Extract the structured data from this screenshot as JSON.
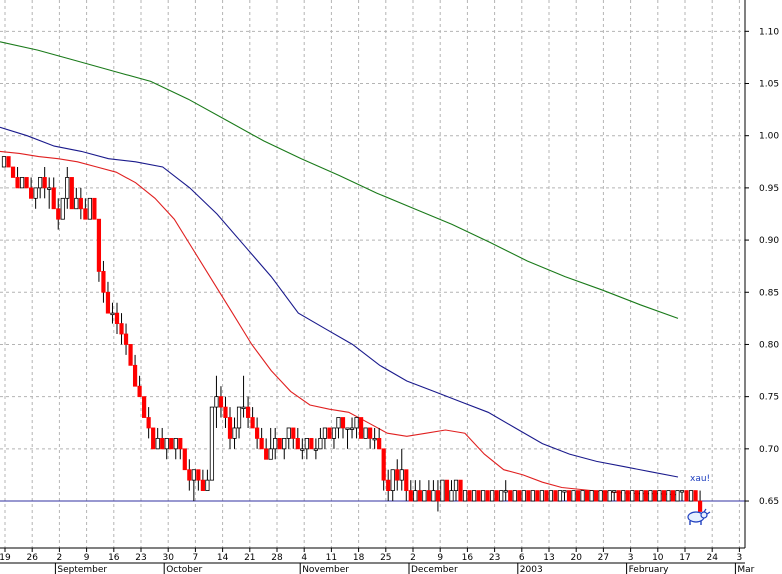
{
  "chart_data": {
    "type": "candlestick",
    "title": "",
    "xlabel": "",
    "ylabel": "",
    "ylim": [
      0.605,
      1.13
    ],
    "y_ticks": [
      "1.10",
      "1.05",
      "1.00",
      "0.95",
      "0.90",
      "0.85",
      "0.80",
      "0.75",
      "0.70",
      "0.65"
    ],
    "y_axis_side": "right",
    "grid": true,
    "x_day_labels": [
      "19",
      "26",
      "2",
      "9",
      "16",
      "23",
      "30",
      "7",
      "14",
      "21",
      "28",
      "4",
      "11",
      "18",
      "25",
      "2",
      "9",
      "16",
      "23",
      "6",
      "13",
      "20",
      "27",
      "3",
      "10",
      "17",
      "24",
      "3"
    ],
    "x_month_labels": [
      "September",
      "October",
      "November",
      "December",
      "2003",
      "February",
      "Mar"
    ],
    "reference_line": 0.65,
    "annotation": "xau!",
    "annotation_icon": "bull-icon",
    "colors": {
      "up": "#ffffff",
      "down": "#ff0000",
      "outline": "#000000",
      "ma_short": "#e02020",
      "ma_mid": "#1a1a8c",
      "ma_long": "#1a7a1a",
      "reference": "#3030a0",
      "grid": "#b4b4b4"
    },
    "series": [
      {
        "kind": "ohlc",
        "values": [
          [
            0.97,
            0.98,
            0.97,
            0.98
          ],
          [
            0.98,
            0.98,
            0.97,
            0.97
          ],
          [
            0.97,
            0.97,
            0.96,
            0.96
          ],
          [
            0.96,
            0.97,
            0.95,
            0.95
          ],
          [
            0.95,
            0.96,
            0.95,
            0.96
          ],
          [
            0.96,
            0.96,
            0.95,
            0.95
          ],
          [
            0.95,
            0.96,
            0.94,
            0.94
          ],
          [
            0.94,
            0.95,
            0.93,
            0.95
          ],
          [
            0.95,
            0.96,
            0.94,
            0.96
          ],
          [
            0.96,
            0.97,
            0.94,
            0.95
          ],
          [
            0.95,
            0.96,
            0.93,
            0.95
          ],
          [
            0.95,
            0.96,
            0.93,
            0.93
          ],
          [
            0.93,
            0.94,
            0.91,
            0.92
          ],
          [
            0.92,
            0.94,
            0.92,
            0.94
          ],
          [
            0.94,
            0.97,
            0.93,
            0.96
          ],
          [
            0.96,
            0.96,
            0.93,
            0.93
          ],
          [
            0.93,
            0.95,
            0.93,
            0.94
          ],
          [
            0.94,
            0.95,
            0.92,
            0.93
          ],
          [
            0.93,
            0.94,
            0.92,
            0.92
          ],
          [
            0.92,
            0.94,
            0.92,
            0.94
          ],
          [
            0.94,
            0.94,
            0.92,
            0.92
          ],
          [
            0.92,
            0.92,
            0.86,
            0.87
          ],
          [
            0.87,
            0.88,
            0.84,
            0.85
          ],
          [
            0.85,
            0.86,
            0.83,
            0.83
          ],
          [
            0.83,
            0.84,
            0.82,
            0.83
          ],
          [
            0.83,
            0.84,
            0.81,
            0.82
          ],
          [
            0.82,
            0.83,
            0.8,
            0.81
          ],
          [
            0.81,
            0.82,
            0.79,
            0.8
          ],
          [
            0.8,
            0.8,
            0.78,
            0.78
          ],
          [
            0.78,
            0.79,
            0.76,
            0.76
          ],
          [
            0.76,
            0.77,
            0.75,
            0.75
          ],
          [
            0.75,
            0.75,
            0.73,
            0.73
          ],
          [
            0.73,
            0.74,
            0.71,
            0.72
          ],
          [
            0.72,
            0.72,
            0.7,
            0.7
          ],
          [
            0.7,
            0.72,
            0.7,
            0.71
          ],
          [
            0.71,
            0.72,
            0.7,
            0.7
          ],
          [
            0.7,
            0.71,
            0.69,
            0.71
          ],
          [
            0.71,
            0.71,
            0.7,
            0.7
          ],
          [
            0.7,
            0.71,
            0.69,
            0.71
          ],
          [
            0.71,
            0.71,
            0.69,
            0.7
          ],
          [
            0.7,
            0.7,
            0.68,
            0.68
          ],
          [
            0.68,
            0.69,
            0.66,
            0.67
          ],
          [
            0.67,
            0.68,
            0.65,
            0.68
          ],
          [
            0.68,
            0.68,
            0.66,
            0.67
          ],
          [
            0.67,
            0.68,
            0.66,
            0.66
          ],
          [
            0.66,
            0.68,
            0.66,
            0.67
          ],
          [
            0.67,
            0.74,
            0.67,
            0.74
          ],
          [
            0.74,
            0.77,
            0.72,
            0.75
          ],
          [
            0.75,
            0.76,
            0.73,
            0.74
          ],
          [
            0.74,
            0.75,
            0.72,
            0.73
          ],
          [
            0.73,
            0.74,
            0.7,
            0.71
          ],
          [
            0.71,
            0.73,
            0.7,
            0.72
          ],
          [
            0.72,
            0.74,
            0.71,
            0.74
          ],
          [
            0.74,
            0.77,
            0.73,
            0.74
          ],
          [
            0.74,
            0.75,
            0.72,
            0.73
          ],
          [
            0.73,
            0.74,
            0.72,
            0.72
          ],
          [
            0.72,
            0.73,
            0.7,
            0.71
          ],
          [
            0.71,
            0.72,
            0.7,
            0.7
          ],
          [
            0.7,
            0.71,
            0.69,
            0.69
          ],
          [
            0.69,
            0.72,
            0.69,
            0.7
          ],
          [
            0.7,
            0.72,
            0.69,
            0.71
          ],
          [
            0.71,
            0.71,
            0.7,
            0.7
          ],
          [
            0.7,
            0.71,
            0.69,
            0.71
          ],
          [
            0.71,
            0.72,
            0.7,
            0.72
          ],
          [
            0.72,
            0.72,
            0.7,
            0.71
          ],
          [
            0.71,
            0.72,
            0.7,
            0.7
          ],
          [
            0.7,
            0.71,
            0.69,
            0.7
          ],
          [
            0.7,
            0.71,
            0.69,
            0.71
          ],
          [
            0.71,
            0.71,
            0.7,
            0.7
          ],
          [
            0.7,
            0.71,
            0.69,
            0.7
          ],
          [
            0.7,
            0.72,
            0.7,
            0.71
          ],
          [
            0.71,
            0.72,
            0.7,
            0.72
          ],
          [
            0.72,
            0.72,
            0.71,
            0.71
          ],
          [
            0.71,
            0.72,
            0.7,
            0.72
          ],
          [
            0.72,
            0.73,
            0.71,
            0.73
          ],
          [
            0.73,
            0.73,
            0.71,
            0.72
          ],
          [
            0.72,
            0.72,
            0.7,
            0.72
          ],
          [
            0.72,
            0.73,
            0.71,
            0.72
          ],
          [
            0.72,
            0.73,
            0.71,
            0.73
          ],
          [
            0.73,
            0.73,
            0.71,
            0.71
          ],
          [
            0.71,
            0.72,
            0.71,
            0.72
          ],
          [
            0.72,
            0.72,
            0.7,
            0.71
          ],
          [
            0.71,
            0.72,
            0.7,
            0.71
          ],
          [
            0.71,
            0.72,
            0.7,
            0.7
          ],
          [
            0.7,
            0.7,
            0.66,
            0.67
          ],
          [
            0.67,
            0.68,
            0.65,
            0.66
          ],
          [
            0.66,
            0.68,
            0.65,
            0.68
          ],
          [
            0.68,
            0.69,
            0.66,
            0.67
          ],
          [
            0.67,
            0.7,
            0.66,
            0.68
          ],
          [
            0.68,
            0.68,
            0.65,
            0.66
          ],
          [
            0.66,
            0.67,
            0.65,
            0.65
          ],
          [
            0.65,
            0.67,
            0.65,
            0.66
          ],
          [
            0.66,
            0.67,
            0.65,
            0.65
          ],
          [
            0.65,
            0.66,
            0.65,
            0.66
          ],
          [
            0.66,
            0.67,
            0.65,
            0.65
          ],
          [
            0.65,
            0.67,
            0.65,
            0.66
          ],
          [
            0.66,
            0.67,
            0.64,
            0.65
          ],
          [
            0.65,
            0.67,
            0.65,
            0.67
          ],
          [
            0.67,
            0.67,
            0.65,
            0.65
          ],
          [
            0.65,
            0.67,
            0.65,
            0.66
          ],
          [
            0.66,
            0.67,
            0.65,
            0.67
          ],
          [
            0.67,
            0.67,
            0.65,
            0.65
          ],
          [
            0.65,
            0.66,
            0.65,
            0.66
          ],
          [
            0.66,
            0.66,
            0.65,
            0.65
          ],
          [
            0.65,
            0.66,
            0.65,
            0.66
          ],
          [
            0.66,
            0.66,
            0.65,
            0.65
          ],
          [
            0.65,
            0.66,
            0.65,
            0.66
          ],
          [
            0.66,
            0.66,
            0.65,
            0.65
          ],
          [
            0.65,
            0.66,
            0.65,
            0.66
          ],
          [
            0.66,
            0.66,
            0.65,
            0.65
          ],
          [
            0.65,
            0.66,
            0.65,
            0.66
          ],
          [
            0.66,
            0.67,
            0.65,
            0.66
          ],
          [
            0.66,
            0.66,
            0.65,
            0.65
          ],
          [
            0.65,
            0.66,
            0.65,
            0.66
          ],
          [
            0.66,
            0.66,
            0.65,
            0.65
          ],
          [
            0.65,
            0.66,
            0.65,
            0.66
          ],
          [
            0.66,
            0.66,
            0.65,
            0.65
          ],
          [
            0.65,
            0.66,
            0.65,
            0.66
          ],
          [
            0.66,
            0.66,
            0.65,
            0.65
          ],
          [
            0.65,
            0.66,
            0.65,
            0.66
          ],
          [
            0.66,
            0.66,
            0.65,
            0.65
          ],
          [
            0.65,
            0.66,
            0.65,
            0.66
          ],
          [
            0.66,
            0.66,
            0.65,
            0.65
          ],
          [
            0.65,
            0.66,
            0.65,
            0.66
          ],
          [
            0.66,
            0.66,
            0.65,
            0.66
          ],
          [
            0.66,
            0.66,
            0.65,
            0.65
          ],
          [
            0.65,
            0.66,
            0.65,
            0.66
          ],
          [
            0.66,
            0.66,
            0.65,
            0.65
          ],
          [
            0.65,
            0.66,
            0.65,
            0.66
          ],
          [
            0.66,
            0.66,
            0.65,
            0.65
          ],
          [
            0.65,
            0.66,
            0.65,
            0.66
          ],
          [
            0.66,
            0.66,
            0.65,
            0.65
          ],
          [
            0.65,
            0.66,
            0.65,
            0.66
          ],
          [
            0.66,
            0.66,
            0.65,
            0.65
          ],
          [
            0.65,
            0.66,
            0.65,
            0.66
          ],
          [
            0.66,
            0.66,
            0.65,
            0.66
          ],
          [
            0.66,
            0.66,
            0.65,
            0.65
          ],
          [
            0.65,
            0.66,
            0.65,
            0.66
          ],
          [
            0.66,
            0.66,
            0.65,
            0.65
          ],
          [
            0.65,
            0.66,
            0.65,
            0.66
          ],
          [
            0.66,
            0.66,
            0.65,
            0.65
          ],
          [
            0.65,
            0.66,
            0.65,
            0.66
          ],
          [
            0.66,
            0.66,
            0.65,
            0.65
          ],
          [
            0.65,
            0.66,
            0.65,
            0.66
          ],
          [
            0.66,
            0.66,
            0.65,
            0.65
          ],
          [
            0.65,
            0.66,
            0.65,
            0.66
          ],
          [
            0.66,
            0.66,
            0.65,
            0.65
          ],
          [
            0.65,
            0.66,
            0.65,
            0.66
          ],
          [
            0.66,
            0.66,
            0.65,
            0.65
          ],
          [
            0.65,
            0.66,
            0.65,
            0.66
          ],
          [
            0.66,
            0.66,
            0.65,
            0.66
          ],
          [
            0.66,
            0.66,
            0.65,
            0.65
          ],
          [
            0.65,
            0.66,
            0.65,
            0.66
          ],
          [
            0.66,
            0.66,
            0.65,
            0.65
          ],
          [
            0.65,
            0.66,
            0.64,
            0.64
          ]
        ]
      },
      {
        "kind": "line",
        "role": "ma_short",
        "values": [
          0.985,
          0.983,
          0.98,
          0.978,
          0.975,
          0.97,
          0.965,
          0.955,
          0.94,
          0.92,
          0.89,
          0.86,
          0.83,
          0.8,
          0.775,
          0.755,
          0.742,
          0.738,
          0.735,
          0.725,
          0.715,
          0.712,
          0.715,
          0.718,
          0.715,
          0.695,
          0.68,
          0.675,
          0.668,
          0.663,
          0.661,
          0.659,
          0.658,
          0.657,
          0.657,
          0.656
        ]
      },
      {
        "kind": "line",
        "role": "ma_mid",
        "values": [
          1.008,
          1.0,
          0.99,
          0.985,
          0.978,
          0.975,
          0.97,
          0.95,
          0.925,
          0.895,
          0.865,
          0.83,
          0.815,
          0.8,
          0.78,
          0.765,
          0.755,
          0.745,
          0.735,
          0.72,
          0.705,
          0.695,
          0.688,
          0.683,
          0.678,
          0.673
        ]
      },
      {
        "kind": "line",
        "role": "ma_long",
        "values": [
          1.09,
          1.082,
          1.072,
          1.062,
          1.052,
          1.035,
          1.015,
          0.995,
          0.978,
          0.962,
          0.945,
          0.93,
          0.915,
          0.898,
          0.88,
          0.865,
          0.852,
          0.838,
          0.825
        ]
      }
    ]
  }
}
